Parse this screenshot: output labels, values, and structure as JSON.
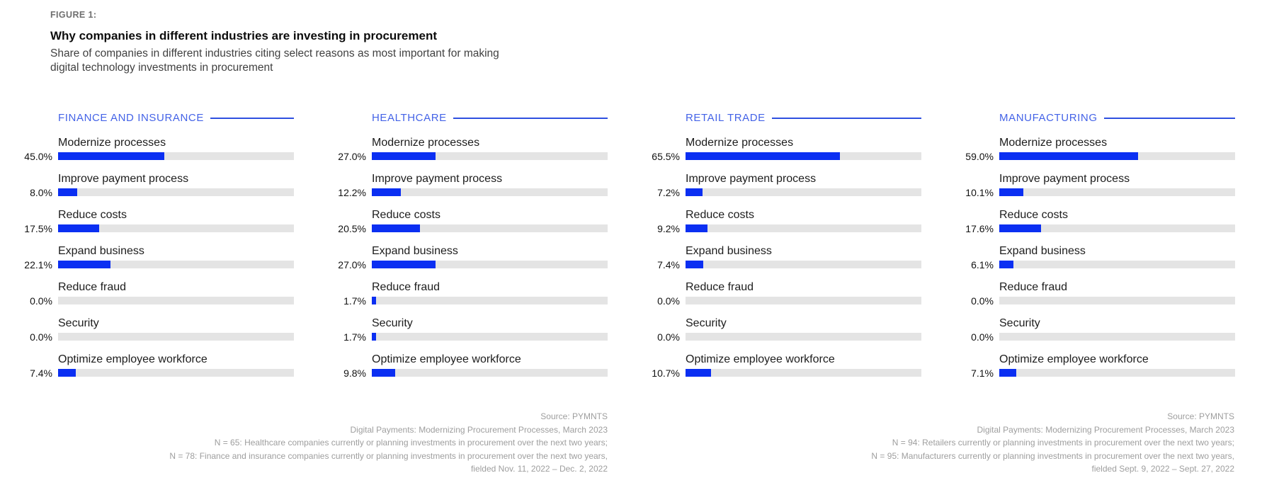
{
  "figure": {
    "label": "FIGURE 1:",
    "title": "Why companies in different industries are investing in procurement",
    "subtitle": "Share of companies in different industries citing select reasons as most important for making digital technology investments in procurement"
  },
  "colors": {
    "bar_blue": "#0b2ff2",
    "track_gray": "#e4e4e4",
    "panel_header_blue": "#4463e7",
    "panel_rule_blue": "#2e50e0",
    "footnote_gray": "#9e9e9e"
  },
  "chart_data": {
    "type": "bar",
    "orientation": "horizontal",
    "unit": "%",
    "xlim": [
      0,
      100
    ],
    "grid": false,
    "legend": "none",
    "title": "Why companies in different industries are investing in procurement",
    "categories": [
      "Modernize processes",
      "Improve payment process",
      "Reduce costs",
      "Expand business",
      "Reduce fraud",
      "Security",
      "Optimize employee workforce"
    ],
    "series": [
      {
        "name": "FINANCE AND INSURANCE",
        "values": [
          45.0,
          8.0,
          17.5,
          22.1,
          0.0,
          0.0,
          7.4
        ]
      },
      {
        "name": "HEALTHCARE",
        "values": [
          27.0,
          12.2,
          20.5,
          27.0,
          1.7,
          1.7,
          9.8
        ]
      },
      {
        "name": "RETAIL TRADE",
        "values": [
          65.5,
          7.2,
          9.2,
          7.4,
          0.0,
          0.0,
          10.7
        ]
      },
      {
        "name": "MANUFACTURING",
        "values": [
          59.0,
          10.1,
          17.6,
          6.1,
          0.0,
          0.0,
          7.1
        ]
      }
    ]
  },
  "footnotes": {
    "left": [
      "Source: PYMNTS",
      "Digital Payments: Modernizing Procurement Processes, March 2023",
      "N = 65: Healthcare companies currently or planning investments in procurement over the next two years;",
      "N = 78: Finance and insurance companies currently or planning investments in procurement over the next two years,",
      "fielded Nov. 11, 2022 – Dec. 2, 2022"
    ],
    "right": [
      "Source: PYMNTS",
      "Digital Payments: Modernizing Procurement Processes, March 2023",
      "N = 94: Retailers currently or planning investments in procurement over the next two years;",
      "N = 95: Manufacturers currently or planning investments in procurement over the next two years,",
      "fielded Sept. 9, 2022 – Sept. 27, 2022"
    ]
  }
}
